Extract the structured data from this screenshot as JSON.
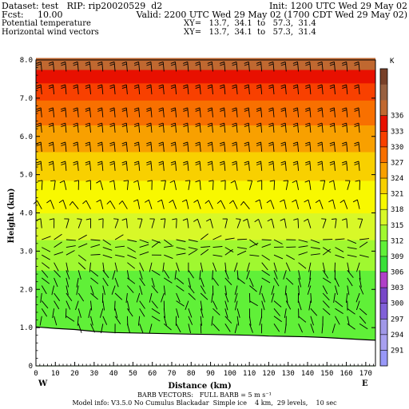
{
  "header": {
    "dataset": "Dataset: test   RIP: rip20020529  d2",
    "init": "Init: 1200 UTC Wed 29 May 02",
    "fcst": "Fcst:     10.00",
    "valid": "Valid: 2200 UTC Wed 29 May 02 (1700 CDT Wed 29 May 02)",
    "field1": "Potential temperature",
    "field1_xy": "XY=   13.7,  34.1  to   57.3,  31.4",
    "field2": "Horizontal wind vectors",
    "field2_xy": "XY=   13.7,  34.1  to   57.3,  31.4"
  },
  "footer": {
    "barb": "BARB VECTORS:   FULL BARB = 5 m s⁻¹",
    "model": "Model info: V3.5.0 No Cumulus Blackadar  Simple ice    4 km,  29 levels,    10 sec"
  },
  "chart_data": {
    "type": "heatmap",
    "title": "Potential temperature",
    "xlabel": "Distance (km)",
    "ylabel": "Height (km)",
    "xlim": [
      0,
      175
    ],
    "ylim": [
      0,
      8
    ],
    "x_ticks": [
      "0",
      "10",
      "20",
      "30",
      "40",
      "50",
      "60",
      "70",
      "80",
      "90",
      "100",
      "110",
      "120",
      "130",
      "140",
      "150",
      "160",
      "170"
    ],
    "y_ticks": [
      "0",
      "1.0",
      "2.0",
      "3.0",
      "4.0",
      "5.0",
      "6.0",
      "7.0",
      "8.0"
    ],
    "x_endpoints": {
      "left": "W",
      "right": "E"
    },
    "colorbar": {
      "unit": "K",
      "levels": [
        "291",
        "294",
        "297",
        "300",
        "303",
        "306",
        "309",
        "312",
        "315",
        "318",
        "321",
        "324",
        "327",
        "330",
        "333",
        "336"
      ],
      "bottom_level": 288,
      "top_level": 339,
      "step": 3
    },
    "color_scale": [
      "#9898f8",
      "#a8a0f0",
      "#a098e8",
      "#8060d8",
      "#7848c8",
      "#b040c8",
      "#38e038",
      "#60f038",
      "#a0f830",
      "#d8f828",
      "#f8f800",
      "#f8d000",
      "#f8a000",
      "#f87000",
      "#f84000",
      "#e81000",
      "#c06830",
      "#986040",
      "#784028"
    ],
    "terrain_km": [
      [
        0,
        1.02
      ],
      [
        10,
        0.98
      ],
      [
        20,
        0.95
      ],
      [
        30,
        0.9
      ],
      [
        40,
        0.87
      ],
      [
        50,
        0.86
      ],
      [
        60,
        0.85
      ],
      [
        70,
        0.84
      ],
      [
        80,
        0.83
      ],
      [
        90,
        0.82
      ],
      [
        100,
        0.81
      ],
      [
        110,
        0.8
      ],
      [
        120,
        0.78
      ],
      [
        130,
        0.77
      ],
      [
        140,
        0.76
      ],
      [
        150,
        0.74
      ],
      [
        160,
        0.71
      ],
      [
        170,
        0.68
      ],
      [
        175,
        0.67
      ]
    ],
    "theta_profile": [
      {
        "z": 0.8,
        "theta": 307.0
      },
      {
        "z": 2.5,
        "theta": 309.0
      },
      {
        "z": 3.0,
        "theta": 311.0
      },
      {
        "z": 3.6,
        "theta": 313.0
      },
      {
        "z": 4.2,
        "theta": 316.0
      },
      {
        "z": 5.0,
        "theta": 318.5
      },
      {
        "z": 5.6,
        "theta": 321.0
      },
      {
        "z": 6.2,
        "theta": 323.5
      },
      {
        "z": 6.8,
        "theta": 326.0
      },
      {
        "z": 7.4,
        "theta": 330.0
      },
      {
        "z": 8.0,
        "theta": 335.0
      }
    ],
    "wind_barbs": {
      "x_start": 0,
      "x_step": 6.3,
      "count": 28,
      "dense_levels": [
        1.1,
        1.3,
        1.5,
        1.7,
        1.9,
        2.1,
        2.3,
        2.5,
        2.7,
        2.9,
        3.1,
        3.3
      ],
      "sparse_levels": [
        3.6,
        4.1,
        4.6,
        5.1,
        5.6,
        6.1,
        6.5,
        7.1,
        7.7
      ]
    }
  }
}
